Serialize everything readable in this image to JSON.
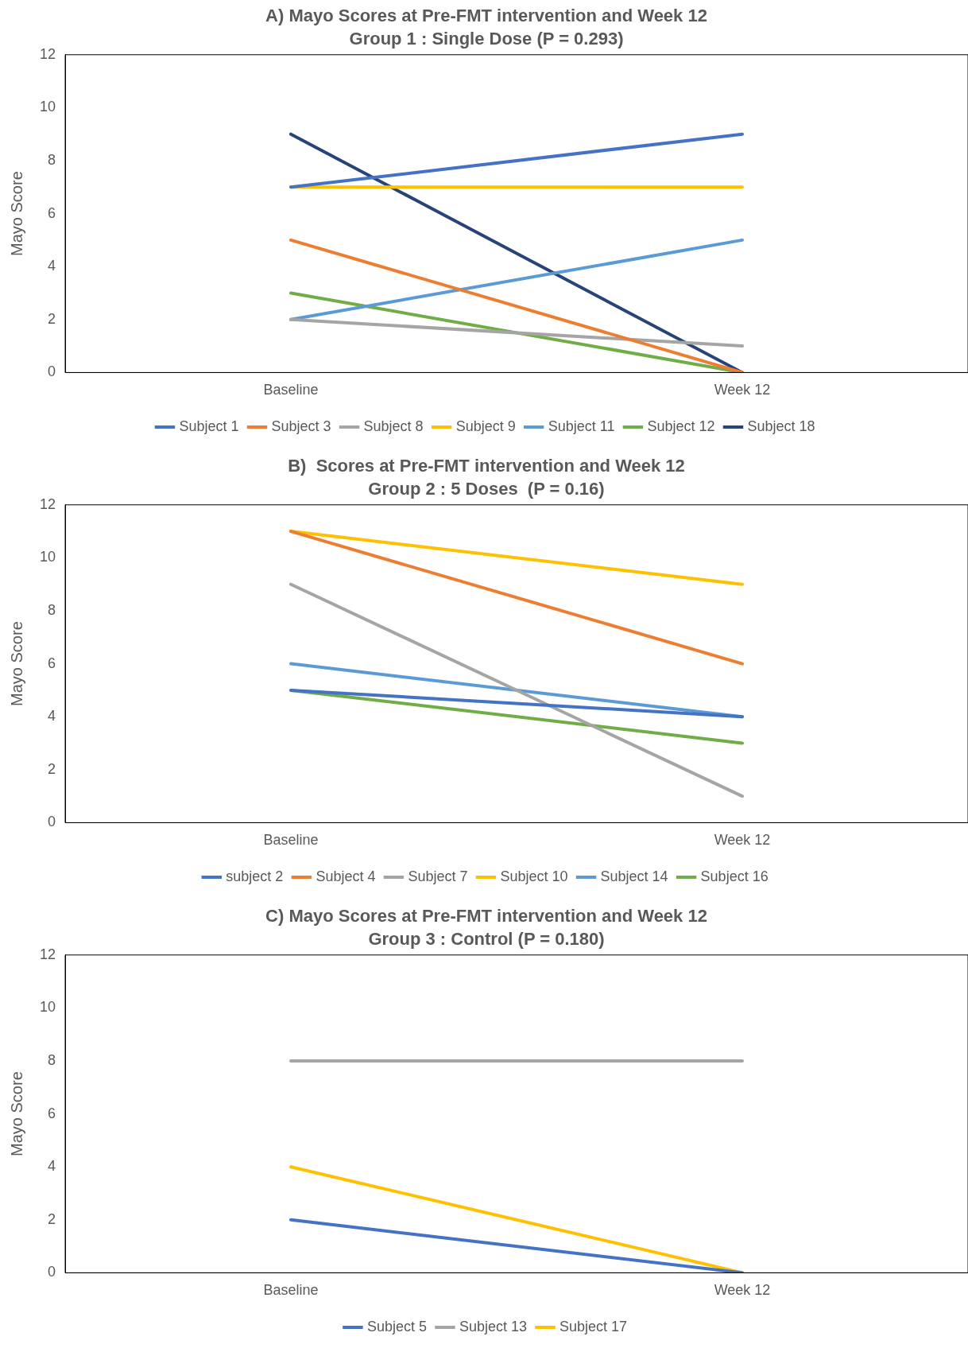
{
  "chart_data": [
    {
      "type": "line",
      "title": "A) Mayo Scores at Pre-FMT intervention and Week 12",
      "subtitle": "Group 1 : Single Dose (P = 0.293)",
      "ylabel": "Mayo Score",
      "categories": [
        "Baseline",
        "Week 12"
      ],
      "ylim": [
        0,
        12
      ],
      "yticks": [
        0,
        2,
        4,
        6,
        8,
        10,
        12
      ],
      "grid": false,
      "legend": "bottom",
      "marker": "none",
      "line_style": "solid",
      "series": [
        {
          "name": "Subject 1",
          "color": "#4472c4",
          "values": [
            7,
            9
          ]
        },
        {
          "name": "Subject 3",
          "color": "#ed7d31",
          "values": [
            5,
            0
          ]
        },
        {
          "name": "Subject 8",
          "color": "#a5a5a5",
          "values": [
            2,
            1
          ]
        },
        {
          "name": "Subject 9",
          "color": "#ffc000",
          "values": [
            7,
            7
          ]
        },
        {
          "name": "Subject 11",
          "color": "#5b9bd5",
          "values": [
            2,
            5
          ]
        },
        {
          "name": "Subject 12",
          "color": "#70ad47",
          "values": [
            3,
            0
          ]
        },
        {
          "name": "Subject 18",
          "color": "#264478",
          "values": [
            9,
            0
          ]
        }
      ]
    },
    {
      "type": "line",
      "title": "B)  Scores at Pre-FMT intervention and Week 12",
      "subtitle": "Group 2 : 5 Doses  (P = 0.16)",
      "ylabel": "Mayo Score",
      "categories": [
        "Baseline",
        "Week 12"
      ],
      "ylim": [
        0,
        12
      ],
      "yticks": [
        0,
        2,
        4,
        6,
        8,
        10,
        12
      ],
      "grid": false,
      "legend": "bottom",
      "marker": "none",
      "line_style": "solid",
      "series": [
        {
          "name": "subject 2",
          "color": "#4472c4",
          "values": [
            5,
            4
          ]
        },
        {
          "name": "Subject 4",
          "color": "#ed7d31",
          "values": [
            11,
            6
          ]
        },
        {
          "name": "Subject 7",
          "color": "#a5a5a5",
          "values": [
            9,
            1
          ]
        },
        {
          "name": "Subject 10",
          "color": "#ffc000",
          "values": [
            11,
            9
          ]
        },
        {
          "name": "Subject 14",
          "color": "#5b9bd5",
          "values": [
            6,
            4
          ]
        },
        {
          "name": "Subject 16",
          "color": "#70ad47",
          "values": [
            5,
            3
          ]
        }
      ]
    },
    {
      "type": "line",
      "title": "C) Mayo Scores at Pre-FMT intervention and Week 12",
      "subtitle": "Group 3 : Control (P = 0.180)",
      "ylabel": "Mayo Score",
      "categories": [
        "Baseline",
        "Week 12"
      ],
      "ylim": [
        0,
        12
      ],
      "yticks": [
        0,
        2,
        4,
        6,
        8,
        10,
        12
      ],
      "grid": false,
      "legend": "bottom",
      "marker": "none",
      "line_style": "solid",
      "series": [
        {
          "name": "Subject 5",
          "color": "#4472c4",
          "values": [
            2,
            0
          ]
        },
        {
          "name": "Subject 13",
          "color": "#a5a5a5",
          "values": [
            8,
            8
          ]
        },
        {
          "name": "Subject 17",
          "color": "#ffc000",
          "values": [
            4,
            0
          ]
        }
      ]
    }
  ]
}
